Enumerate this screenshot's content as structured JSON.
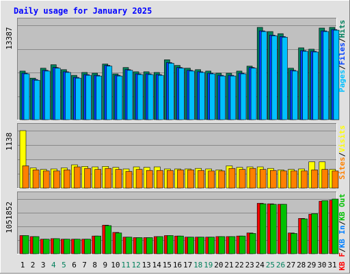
{
  "title": "Daily usage for January 2025",
  "colors": {
    "background": "#e0e0e0",
    "plot_bg": "#c0c0c0",
    "frame_dark": "#808080",
    "frame_light": "#ffffff",
    "grid": "#888888",
    "title_text": "#0000ff",
    "axis_text": "#000000",
    "weekend_text": "#00805c",
    "separator": "#000000",
    "hits": "#00805c",
    "files": "#0040ff",
    "pages": "#00c0ff",
    "visits": "#ffff00",
    "sites": "#ff8000",
    "kb_in": "#0080ff",
    "kb_out": "#00c000",
    "kb_f": "#ff0000"
  },
  "chart_data": [
    {
      "type": "bar",
      "panel": "hits-files-pages",
      "max_label": "13387",
      "ylim": [
        0,
        13387
      ],
      "categories": [
        "1",
        "2",
        "3",
        "4",
        "5",
        "6",
        "7",
        "8",
        "9",
        "10",
        "11",
        "12",
        "13",
        "14",
        "15",
        "16",
        "17",
        "18",
        "19",
        "20",
        "21",
        "22",
        "23",
        "24",
        "25",
        "26",
        "27",
        "28",
        "29",
        "30",
        "31"
      ],
      "weekend_days": [
        "4",
        "5",
        "11",
        "12",
        "18",
        "19",
        "25",
        "26"
      ],
      "legend": [
        "Pages",
        "/",
        "Files",
        "/",
        "Hits"
      ],
      "series": [
        {
          "name": "Hits",
          "values": [
            6900,
            5900,
            7300,
            7800,
            7100,
            6300,
            6700,
            6600,
            7900,
            6500,
            7400,
            6800,
            6800,
            6700,
            8500,
            7700,
            7300,
            7100,
            6900,
            6600,
            6600,
            6900,
            7600,
            13100,
            12500,
            12200,
            7300,
            10200,
            10000,
            13000,
            13100
          ]
        },
        {
          "name": "Files",
          "values": [
            6600,
            5700,
            7000,
            7400,
            6800,
            6000,
            6400,
            6300,
            7700,
            6300,
            7100,
            6500,
            6500,
            6400,
            8100,
            7400,
            7000,
            6800,
            6600,
            6300,
            6300,
            6600,
            7400,
            12600,
            12000,
            11800,
            7000,
            9800,
            9700,
            12600,
            12800
          ]
        },
        {
          "name": "Pages",
          "values": [
            6500,
            5600,
            6900,
            7300,
            6700,
            5900,
            6300,
            6200,
            7600,
            6200,
            7000,
            6400,
            6400,
            6300,
            8000,
            7300,
            6900,
            6700,
            6500,
            6200,
            6200,
            6500,
            7300,
            12500,
            11900,
            11700,
            6900,
            9700,
            9600,
            12500,
            12700
          ]
        }
      ]
    },
    {
      "type": "bar",
      "panel": "visits-sites",
      "max_label": "1138",
      "ylim": [
        0,
        1138
      ],
      "categories": [
        "1",
        "2",
        "3",
        "4",
        "5",
        "6",
        "7",
        "8",
        "9",
        "10",
        "11",
        "12",
        "13",
        "14",
        "15",
        "16",
        "17",
        "18",
        "19",
        "20",
        "21",
        "22",
        "23",
        "24",
        "25",
        "26",
        "27",
        "28",
        "29",
        "30",
        "31"
      ],
      "legend": [
        "Sites",
        "/",
        "Visits"
      ],
      "series": [
        {
          "name": "Visits",
          "values": [
            1138,
            400,
            370,
            380,
            400,
            460,
            430,
            420,
            430,
            410,
            380,
            420,
            410,
            420,
            380,
            380,
            380,
            390,
            380,
            360,
            440,
            410,
            420,
            420,
            390,
            360,
            370,
            380,
            520,
            520,
            370
          ]
        },
        {
          "name": "Sites",
          "values": [
            440,
            360,
            340,
            340,
            360,
            420,
            390,
            370,
            390,
            370,
            330,
            370,
            350,
            350,
            350,
            360,
            360,
            350,
            340,
            340,
            390,
            370,
            390,
            370,
            350,
            340,
            340,
            340,
            360,
            370,
            340
          ]
        }
      ]
    },
    {
      "type": "bar",
      "panel": "kbytes",
      "max_label": "1051852",
      "ylim": [
        0,
        1051852
      ],
      "categories": [
        "1",
        "2",
        "3",
        "4",
        "5",
        "6",
        "7",
        "8",
        "9",
        "10",
        "11",
        "12",
        "13",
        "14",
        "15",
        "16",
        "17",
        "18",
        "19",
        "20",
        "21",
        "22",
        "23",
        "24",
        "25",
        "26",
        "27",
        "28",
        "29",
        "30",
        "31"
      ],
      "legend": [
        "KB F",
        "/",
        "KB In",
        "/",
        "KB Out",
        "/",
        "Sites",
        "/",
        "Visits"
      ],
      "legend_bottom": [
        "KB F",
        "/",
        "KB In",
        "/",
        "KB Out"
      ],
      "series": [
        {
          "name": "KB F",
          "values": [
            350000,
            330000,
            280000,
            290000,
            280000,
            280000,
            280000,
            340000,
            550000,
            410000,
            320000,
            310000,
            310000,
            330000,
            350000,
            340000,
            320000,
            320000,
            320000,
            330000,
            330000,
            340000,
            400000,
            970000,
            960000,
            950000,
            400000,
            680000,
            760000,
            1010000,
            1030000
          ]
        },
        {
          "name": "KB Out",
          "values": [
            350000,
            330000,
            280000,
            290000,
            280000,
            280000,
            280000,
            340000,
            540000,
            400000,
            320000,
            310000,
            310000,
            330000,
            350000,
            340000,
            320000,
            320000,
            320000,
            330000,
            330000,
            340000,
            390000,
            960000,
            950000,
            950000,
            390000,
            670000,
            770000,
            1020000,
            1051852
          ]
        }
      ]
    }
  ]
}
